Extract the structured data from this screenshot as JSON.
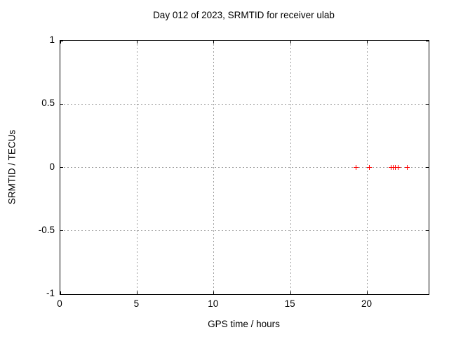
{
  "colors": {
    "background": "#ffffff",
    "border": "#000000",
    "text": "#000000",
    "grid": "#9e9e9e",
    "marker": "#ff0000"
  },
  "chart_data": {
    "type": "scatter",
    "title": "Day 012 of 2023, SRMTID for receiver ulab",
    "xlabel": "GPS time / hours",
    "ylabel": "SRMTID / TECUs",
    "xlim": [
      0,
      24
    ],
    "ylim": [
      -1,
      1
    ],
    "x_ticks": [
      0,
      5,
      10,
      15,
      20
    ],
    "x_tick_labels": [
      "0",
      "5",
      "10",
      "15",
      "20"
    ],
    "y_ticks": [
      1,
      0.5,
      0,
      -0.5,
      -1
    ],
    "y_tick_labels": [
      "1",
      "0.5",
      "0",
      "-0.5",
      "-1"
    ],
    "grid": true,
    "legend": "none",
    "series": [
      {
        "name": "SRMTID",
        "marker": "plus",
        "color": "#ff0000",
        "points": [
          {
            "x": 19.25,
            "y": 0
          },
          {
            "x": 20.14,
            "y": 0
          },
          {
            "x": 21.55,
            "y": 0
          },
          {
            "x": 21.69,
            "y": 0
          },
          {
            "x": 21.83,
            "y": 0
          },
          {
            "x": 22.01,
            "y": 0
          },
          {
            "x": 22.61,
            "y": 0
          }
        ]
      }
    ]
  }
}
